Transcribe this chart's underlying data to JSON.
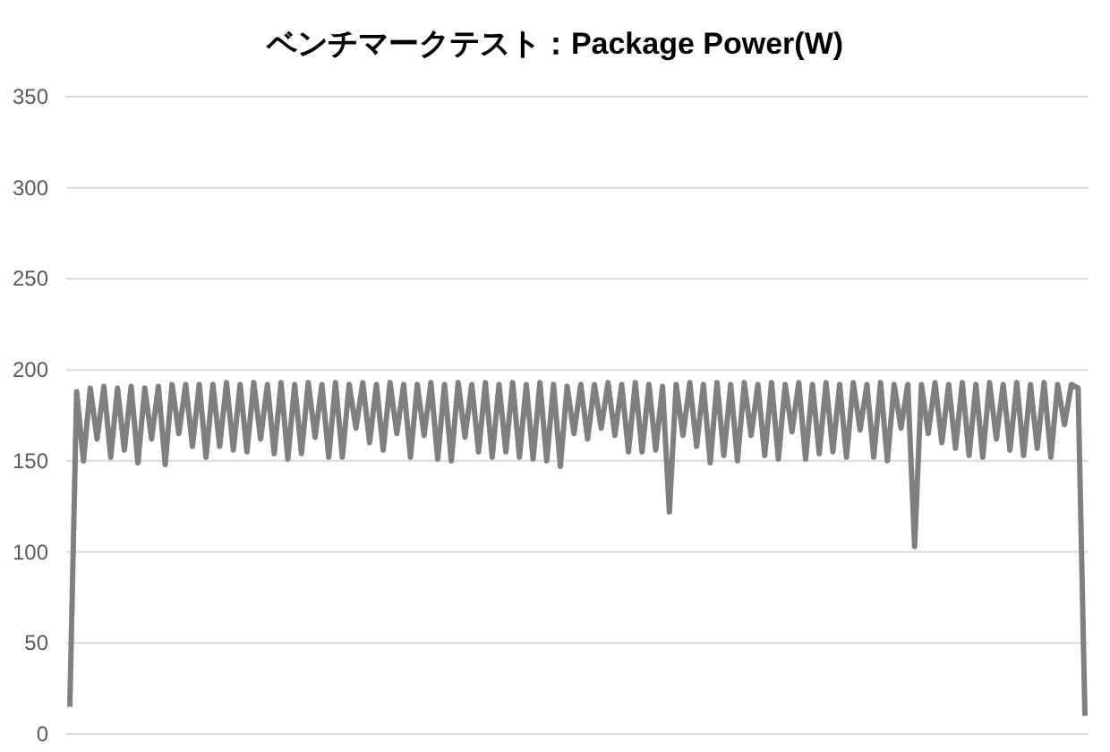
{
  "chart_data": {
    "type": "line",
    "title": "ベンチマークテスト：Package Power(W)",
    "categories": [
      null,
      null,
      null,
      null,
      null,
      null,
      null,
      null,
      null,
      null,
      null,
      null,
      null,
      null,
      null,
      null,
      null,
      null,
      null,
      null,
      null,
      null,
      null,
      null,
      null,
      null,
      null,
      null,
      null,
      null,
      null,
      null,
      null,
      null,
      null,
      null,
      null,
      null,
      null,
      null,
      null,
      null,
      null,
      null,
      null,
      null,
      null,
      null,
      null,
      null,
      null,
      null,
      null,
      null,
      null,
      null,
      null,
      null,
      null,
      null,
      null,
      null,
      null,
      null,
      null,
      null,
      null,
      null,
      null,
      null,
      null,
      null,
      null,
      null,
      null,
      null,
      null,
      null,
      null,
      null,
      null,
      null,
      null,
      null,
      null,
      null,
      null,
      null,
      null,
      null,
      null,
      null,
      null,
      null,
      null,
      null,
      null,
      null,
      null,
      null,
      null,
      null,
      null,
      null,
      null,
      null,
      null,
      null,
      null,
      null,
      null,
      null,
      null,
      null,
      null,
      null,
      null,
      null,
      null,
      null,
      null,
      null,
      null,
      null,
      null,
      null,
      null,
      null,
      null,
      null,
      null,
      null,
      null,
      null,
      null,
      null,
      null,
      null,
      null,
      null,
      null,
      null,
      null,
      null,
      null,
      null,
      null,
      null,
      null,
      null
    ],
    "series": [
      {
        "color": "#7f7f7f",
        "values": [
          15,
          188,
          150,
          190,
          162,
          191,
          152,
          190,
          156,
          191,
          149,
          190,
          162,
          191,
          148,
          192,
          165,
          192,
          158,
          192,
          152,
          192,
          158,
          193,
          156,
          192,
          155,
          193,
          162,
          192,
          154,
          193,
          151,
          192,
          154,
          193,
          163,
          192,
          152,
          193,
          152,
          192,
          168,
          193,
          160,
          192,
          156,
          193,
          165,
          192,
          152,
          192,
          164,
          193,
          151,
          192,
          150,
          193,
          163,
          192,
          155,
          193,
          152,
          192,
          155,
          193,
          152,
          192,
          151,
          193,
          150,
          192,
          147,
          191,
          165,
          192,
          162,
          192,
          168,
          193,
          164,
          192,
          155,
          193,
          155,
          192,
          156,
          191,
          122,
          192,
          164,
          193,
          158,
          192,
          149,
          193,
          153,
          192,
          150,
          193,
          164,
          192,
          153,
          193,
          151,
          192,
          166,
          193,
          151,
          192,
          154,
          193,
          155,
          192,
          152,
          193,
          167,
          192,
          152,
          193,
          150,
          192,
          168,
          192,
          103,
          192,
          165,
          193,
          160,
          192,
          157,
          193,
          153,
          192,
          152,
          193,
          162,
          192,
          156,
          193,
          153,
          192,
          157,
          193,
          152,
          192,
          170,
          192,
          190,
          10
        ]
      }
    ],
    "ylim": [
      0,
      350
    ],
    "yticks": [
      0,
      50,
      100,
      150,
      200,
      250,
      300,
      350
    ],
    "grid": "y",
    "line_style": "solid",
    "marker": "none"
  }
}
